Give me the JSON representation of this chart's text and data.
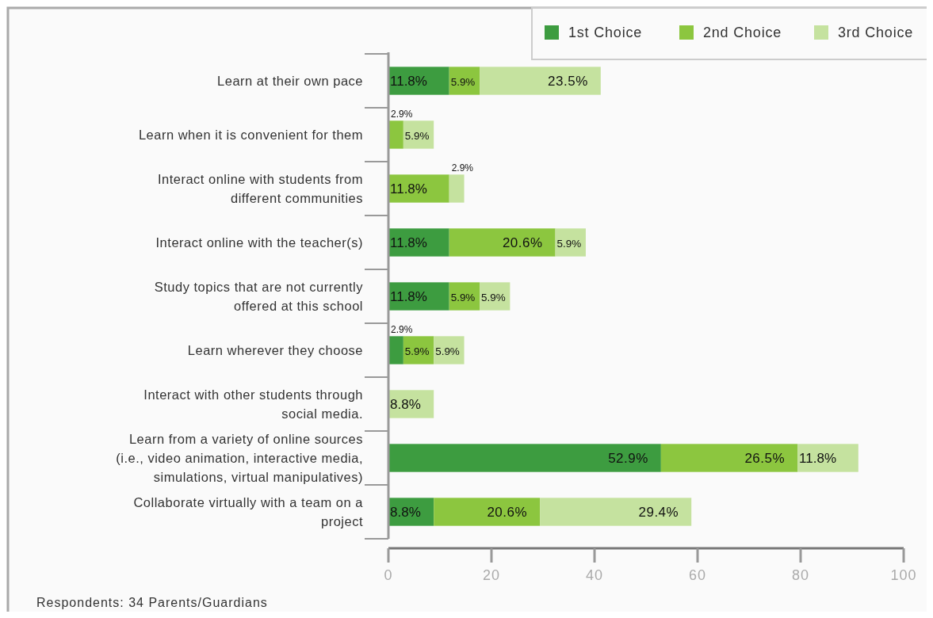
{
  "chart_data": {
    "type": "bar",
    "orientation": "horizontal",
    "stacked": true,
    "categories": [
      "Learn at their own pace",
      "Learn when it is convenient for them",
      "Interact online with students from different communities",
      "Interact online with the teacher(s)",
      "Study topics that are not currently offered at this school",
      "Learn wherever they choose",
      "Interact with other students through social media.",
      "Learn from a variety of online sources (i.e., video animation, interactive media, simulations, virtual manipulatives)",
      "Collaborate virtually with a team on a project"
    ],
    "series": [
      {
        "name": "1st Choice",
        "color": "#3d9c40",
        "values": [
          11.8,
          0,
          0,
          11.8,
          11.8,
          2.9,
          0,
          52.9,
          8.8
        ],
        "value_labels": [
          "11.8%",
          null,
          null,
          "11.8%",
          "11.8%",
          "2.9%",
          null,
          "52.9%",
          "8.8%"
        ]
      },
      {
        "name": "2nd Choice",
        "color": "#8cc63f",
        "values": [
          5.9,
          2.9,
          11.8,
          20.6,
          5.9,
          5.9,
          0,
          26.5,
          20.6
        ],
        "value_labels": [
          "5.9%",
          "2.9%",
          "11.8%",
          "20.6%",
          "5.9%",
          "5.9%",
          null,
          "26.5%",
          "20.6%"
        ]
      },
      {
        "name": "3rd Choice",
        "color": "#c5e29f",
        "values": [
          23.5,
          5.9,
          2.9,
          5.9,
          5.9,
          5.9,
          8.8,
          11.8,
          29.4
        ],
        "value_labels": [
          "23.5%",
          "5.9%",
          "2.9%",
          "5.9%",
          "5.9%",
          "5.9%",
          "8.8%",
          "11.8%",
          "29.4%"
        ]
      }
    ],
    "xlim": [
      0,
      100
    ],
    "xticks": [
      0,
      20,
      40,
      60,
      80,
      100
    ],
    "grid": false,
    "legend": "top right",
    "annotations": [
      "Respondents: 34 Parents/Guardians"
    ]
  }
}
